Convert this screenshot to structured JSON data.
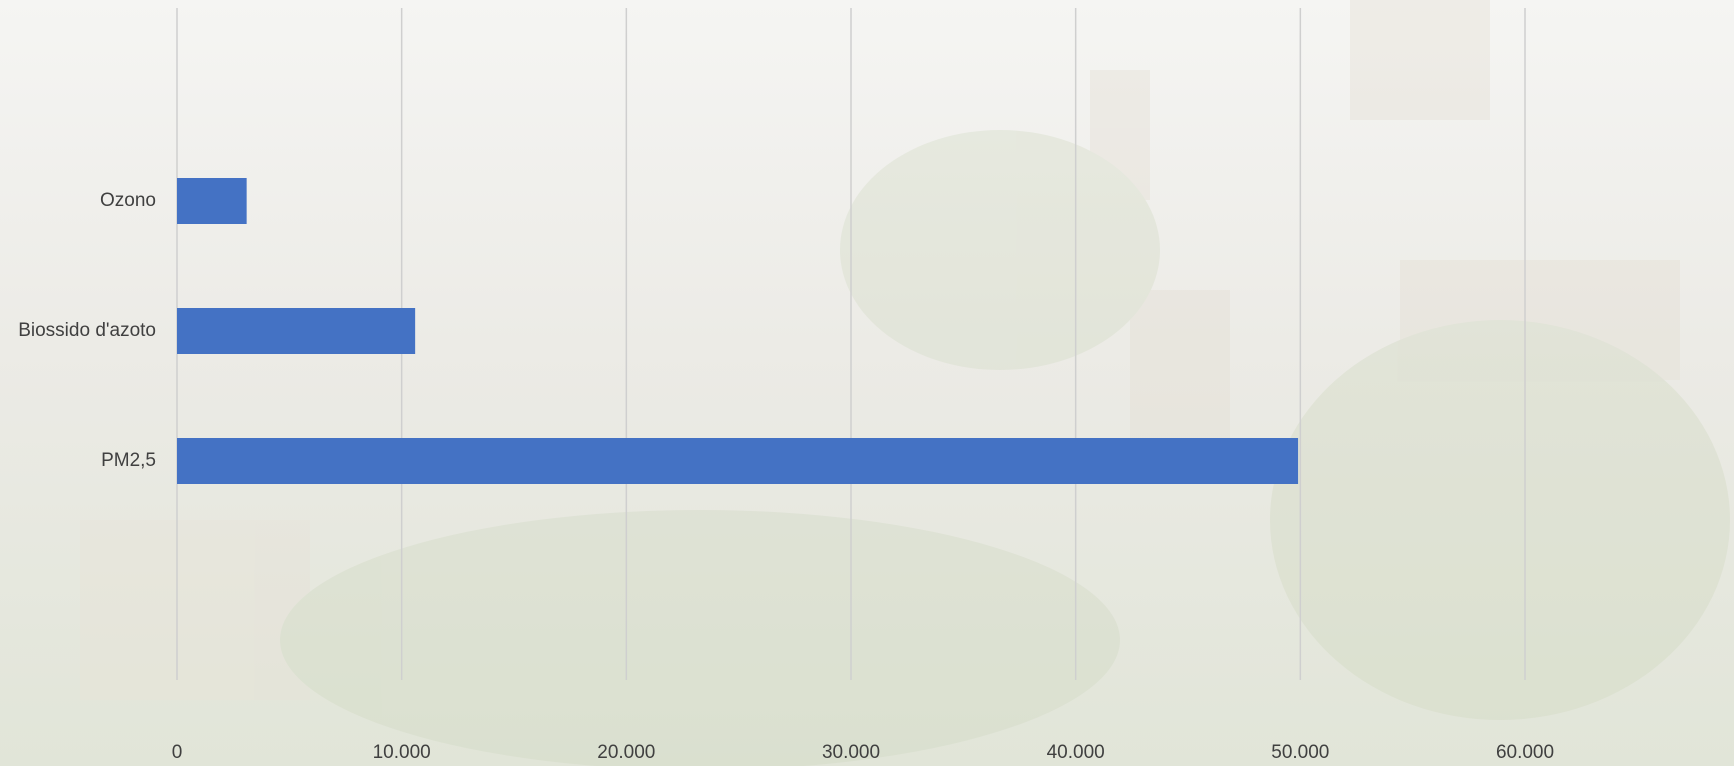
{
  "chart_data": {
    "type": "barh",
    "categories": [
      "Ozono",
      "Biossido d'azoto",
      "PM2,5"
    ],
    "values": [
      3100,
      10600,
      49900
    ],
    "color": "#4472c4",
    "xlim": [
      0,
      60000
    ],
    "xticks": [
      0,
      {
        "value": 10000,
        "label": "10.000"
      },
      {
        "value": 20000,
        "label": "20.000"
      },
      {
        "value": 30000,
        "label": "30.000"
      },
      {
        "value": 40000,
        "label": "40.000"
      },
      {
        "value": 50000,
        "label": "50.000"
      },
      {
        "value": 60000,
        "label": "60.000"
      }
    ],
    "grid": true
  }
}
